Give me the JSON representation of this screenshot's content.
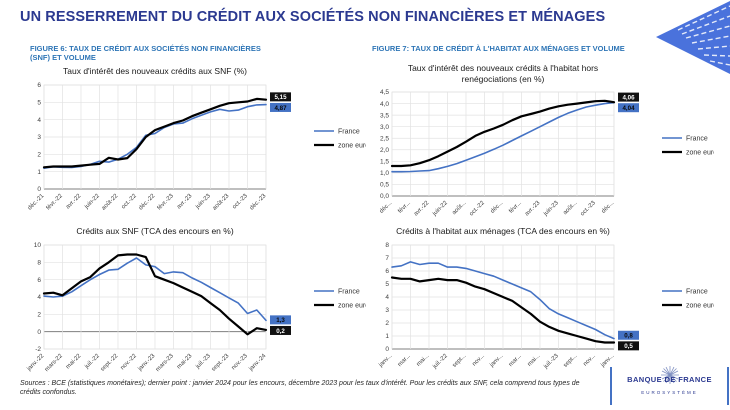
{
  "page": {
    "title": "UN RESSERREMENT DU CRÉDIT AUX SOCIÉTÉS NON FINANCIÈRES ET MÉNAGES",
    "sources_note": "Sources : BCE (statistiques monétaires); dernier point : janvier 2024 pour les encours, décembre 2023 pour les taux d'intérêt. Pour les crédits aux SNF, cela comprend tous types de crédits confondus.",
    "brand": {
      "bank_name": "BANQUE DE FRANCE",
      "subtitle": "EUROSYSTÈME"
    }
  },
  "figures": {
    "fig6_caption": "FIGURE 6: TAUX DE CRÉDIT AUX SOCIÉTÉS NON FINANCIÈRES (SNF) ET VOLUME",
    "fig7_caption": "FIGURE 7: TAUX DE CRÉDIT À L'HABITAT AUX MÉNAGES ET VOLUME"
  },
  "colors": {
    "france_blue": "#4472C4",
    "zone_euro_black": "#000000",
    "caption_blue": "#2E75B6",
    "title_navy": "#2B3990",
    "corner_blue": "#4A72DC"
  },
  "chart_data": [
    {
      "type": "line",
      "name": "snf-new-credit-rates",
      "title": "Taux d'intérêt des nouveaux crédits aux SNF (%)",
      "ylim": [
        0,
        6
      ],
      "y_ticks": [
        "0",
        "1",
        "2",
        "3",
        "4",
        "5",
        "6"
      ],
      "x_tick_labels": [
        "déc.-21",
        "févr.-22",
        "avr.-22",
        "juin-22",
        "août-22",
        "oct.-22",
        "déc.-22",
        "févr.-23",
        "avr.-23",
        "juin-23",
        "août-23",
        "oct.-23",
        "déc.-23"
      ],
      "legend": [
        "France",
        "zone euro"
      ],
      "legend_position": "right",
      "grid": true,
      "series": [
        {
          "name": "France",
          "color": "#4472C4",
          "end_label": "4,87",
          "values": [
            1.2,
            1.28,
            1.25,
            1.24,
            1.3,
            1.42,
            1.6,
            1.55,
            1.72,
            2.0,
            2.4,
            3.1,
            3.2,
            3.55,
            3.75,
            3.8,
            4.05,
            4.25,
            4.45,
            4.6,
            4.5,
            4.55,
            4.75,
            4.85,
            4.87
          ]
        },
        {
          "name": "zone euro",
          "color": "#000000",
          "end_label": "5,15",
          "values": [
            1.25,
            1.3,
            1.3,
            1.3,
            1.35,
            1.4,
            1.45,
            1.8,
            1.7,
            1.78,
            2.3,
            3.0,
            3.4,
            3.6,
            3.8,
            3.95,
            4.2,
            4.4,
            4.6,
            4.8,
            4.95,
            5.0,
            5.05,
            5.2,
            5.15
          ]
        }
      ]
    },
    {
      "type": "line",
      "name": "habitat-new-credit-rates",
      "title": "Taux d'intérêt des nouveaux crédits à l'habitat hors renégociations (en %)",
      "ylim": [
        0,
        4.5
      ],
      "y_ticks": [
        "0,0",
        "0,5",
        "1,0",
        "1,5",
        "2,0",
        "2,5",
        "3,0",
        "3,5",
        "4,0",
        "4,5"
      ],
      "x_tick_labels": [
        "déc...",
        "févr...",
        "avr.-22",
        "juin-22",
        "août...",
        "oct.-22",
        "déc...",
        "févr...",
        "avr.-23",
        "juin-23",
        "août...",
        "oct.-23",
        "déc..."
      ],
      "legend": [
        "France",
        "zone euro"
      ],
      "legend_position": "right",
      "grid": true,
      "series": [
        {
          "name": "France",
          "color": "#4472C4",
          "end_label": "4,04",
          "values": [
            1.05,
            1.05,
            1.06,
            1.08,
            1.1,
            1.18,
            1.28,
            1.4,
            1.55,
            1.7,
            1.85,
            2.02,
            2.2,
            2.4,
            2.6,
            2.8,
            3.0,
            3.2,
            3.4,
            3.58,
            3.72,
            3.85,
            3.93,
            4.0,
            4.04
          ]
        },
        {
          "name": "zone euro",
          "color": "#000000",
          "end_label": "4,06",
          "values": [
            1.3,
            1.3,
            1.33,
            1.42,
            1.55,
            1.72,
            1.92,
            2.12,
            2.35,
            2.6,
            2.78,
            2.92,
            3.08,
            3.28,
            3.45,
            3.55,
            3.65,
            3.78,
            3.88,
            3.95,
            4.0,
            4.05,
            4.1,
            4.12,
            4.06
          ]
        }
      ]
    },
    {
      "type": "line",
      "name": "snf-outstanding-growth",
      "title": "Crédits aux SNF (TCA des encours en %)",
      "ylim": [
        -2,
        10
      ],
      "y_ticks": [
        "-2",
        "0",
        "2",
        "4",
        "6",
        "8",
        "10"
      ],
      "x_tick_labels": [
        "janv.-22",
        "mars-22",
        "mai-22",
        "juil.-22",
        "sept.-22",
        "nov.-22",
        "janv.-23",
        "mars-23",
        "mai-23",
        "juil.-23",
        "sept.-23",
        "nov.-23",
        "janv.-24"
      ],
      "legend": [
        "France",
        "zone euro"
      ],
      "legend_position": "right",
      "grid": true,
      "series": [
        {
          "name": "France",
          "color": "#4472C4",
          "end_label": "1,3",
          "values": [
            4.1,
            4.0,
            4.1,
            4.6,
            5.3,
            6.0,
            6.6,
            7.1,
            7.2,
            7.9,
            8.5,
            7.7,
            7.5,
            6.7,
            6.9,
            6.8,
            6.2,
            5.7,
            5.1,
            4.5,
            3.9,
            3.3,
            2.1,
            2.5,
            1.3
          ]
        },
        {
          "name": "zone euro",
          "color": "#000000",
          "end_label": "0,2",
          "values": [
            4.4,
            4.5,
            4.2,
            5.0,
            5.8,
            6.3,
            7.3,
            8.0,
            8.8,
            8.9,
            8.9,
            8.6,
            6.4,
            6.0,
            5.6,
            5.1,
            4.6,
            4.1,
            3.3,
            2.5,
            1.5,
            0.6,
            -0.3,
            0.4,
            0.2
          ]
        }
      ]
    },
    {
      "type": "line",
      "name": "habitat-outstanding-growth",
      "title": "Crédits à l'habitat aux ménages (TCA des encours en %)",
      "ylim": [
        0,
        8
      ],
      "y_ticks": [
        "0",
        "1",
        "2",
        "3",
        "4",
        "5",
        "6",
        "7",
        "8"
      ],
      "x_tick_labels": [
        "janv...",
        "mar...",
        "mai...",
        "juil.-22",
        "sept...",
        "nov...",
        "janv...",
        "mar...",
        "mai...",
        "juil.-23",
        "sept...",
        "nov...",
        "janv..."
      ],
      "legend": [
        "France",
        "zone euro"
      ],
      "legend_position": "right",
      "grid": true,
      "series": [
        {
          "name": "France",
          "color": "#4472C4",
          "end_label": "0,8",
          "values": [
            6.3,
            6.4,
            6.7,
            6.5,
            6.6,
            6.6,
            6.3,
            6.3,
            6.2,
            6.0,
            5.8,
            5.6,
            5.3,
            5.0,
            4.7,
            4.4,
            3.8,
            3.1,
            2.7,
            2.4,
            2.1,
            1.8,
            1.5,
            1.1,
            0.8
          ]
        },
        {
          "name": "zone euro",
          "color": "#000000",
          "end_label": "0,5",
          "values": [
            5.5,
            5.4,
            5.4,
            5.2,
            5.3,
            5.4,
            5.3,
            5.3,
            5.1,
            4.8,
            4.6,
            4.3,
            4.0,
            3.7,
            3.2,
            2.7,
            2.1,
            1.7,
            1.4,
            1.2,
            1.0,
            0.8,
            0.6,
            0.5,
            0.5
          ]
        }
      ]
    }
  ]
}
